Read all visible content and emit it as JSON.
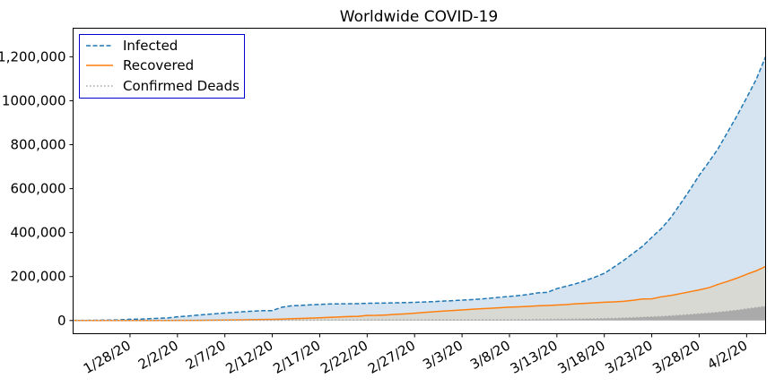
{
  "chart_data": {
    "type": "line",
    "title": "Worldwide COVID-19",
    "xlabel": "",
    "ylabel": "",
    "x": [
      "1/22/20",
      "1/23/20",
      "1/24/20",
      "1/25/20",
      "1/26/20",
      "1/27/20",
      "1/28/20",
      "1/29/20",
      "1/30/20",
      "1/31/20",
      "2/1/20",
      "2/2/20",
      "2/3/20",
      "2/4/20",
      "2/5/20",
      "2/6/20",
      "2/7/20",
      "2/8/20",
      "2/9/20",
      "2/10/20",
      "2/11/20",
      "2/12/20",
      "2/13/20",
      "2/14/20",
      "2/15/20",
      "2/16/20",
      "2/17/20",
      "2/18/20",
      "2/19/20",
      "2/20/20",
      "2/21/20",
      "2/22/20",
      "2/23/20",
      "2/24/20",
      "2/25/20",
      "2/26/20",
      "2/27/20",
      "2/28/20",
      "2/29/20",
      "3/1/20",
      "3/2/20",
      "3/3/20",
      "3/4/20",
      "3/5/20",
      "3/6/20",
      "3/7/20",
      "3/8/20",
      "3/9/20",
      "3/10/20",
      "3/11/20",
      "3/12/20",
      "3/13/20",
      "3/14/20",
      "3/15/20",
      "3/16/20",
      "3/17/20",
      "3/18/20",
      "3/19/20",
      "3/20/20",
      "3/21/20",
      "3/22/20",
      "3/23/20",
      "3/24/20",
      "3/25/20",
      "3/26/20",
      "3/27/20",
      "3/28/20",
      "3/29/20",
      "3/30/20",
      "3/31/20",
      "4/1/20",
      "4/2/20",
      "4/3/20",
      "4/4/20"
    ],
    "x_ticks": [
      "1/28/20",
      "2/2/20",
      "2/7/20",
      "2/12/20",
      "2/17/20",
      "2/22/20",
      "2/27/20",
      "3/3/20",
      "3/8/20",
      "3/13/20",
      "3/18/20",
      "3/23/20",
      "3/28/20",
      "4/2/20"
    ],
    "y_ticks": [
      0,
      200000,
      400000,
      600000,
      800000,
      1000000,
      1200000
    ],
    "y_tick_labels": [
      "0",
      "200,000",
      "400,000",
      "600,000",
      "800,000",
      "1000,000",
      "1,200,000"
    ],
    "ylim": [
      -60000,
      1330000
    ],
    "grid": false,
    "legend_position": "top-left",
    "series": [
      {
        "name": "Infected",
        "style": "dashed",
        "color": "#1f77b4",
        "fill": "#d5e4f0",
        "values": [
          555,
          654,
          941,
          1434,
          2118,
          2927,
          5578,
          6166,
          8234,
          9927,
          12038,
          16787,
          19881,
          23892,
          27635,
          30794,
          34391,
          37120,
          40150,
          42762,
          44802,
          45221,
          60368,
          66885,
          69030,
          71224,
          73258,
          75136,
          75639,
          76197,
          76819,
          78572,
          78958,
          79561,
          80406,
          81388,
          82746,
          84112,
          86011,
          88369,
          90306,
          92840,
          95120,
          97886,
          101801,
          105847,
          109821,
          113590,
          118620,
          125875,
          128352,
          145205,
          156101,
          167454,
          181574,
          197102,
          214821,
          242570,
          272208,
          304507,
          336953,
          378235,
          418045,
          467653,
          529591,
          593291,
          660706,
          720117,
          782365,
          857487,
          932605,
          1013157,
          1095917,
          1200000
        ]
      },
      {
        "name": "Recovered",
        "style": "solid",
        "color": "#ff7f0e",
        "fill": "#d9d9d3",
        "values": [
          28,
          30,
          36,
          39,
          52,
          61,
          107,
          126,
          143,
          222,
          284,
          472,
          623,
          852,
          1124,
          1487,
          2011,
          2616,
          3244,
          3946,
          4683,
          5150,
          6295,
          8058,
          9395,
          10865,
          12583,
          14352,
          16121,
          18177,
          18890,
          22886,
          23394,
          25227,
          27905,
          30384,
          33277,
          36711,
          39782,
          42716,
          45602,
          48228,
          51170,
          53796,
          55865,
          58358,
          60694,
          62494,
          64404,
          67003,
          68324,
          70251,
          72624,
          76034,
          78088,
          80840,
          83207,
          84854,
          87256,
          91692,
          97899,
          98351,
          107891,
          113604,
          122132,
          130801,
          139426,
          149126,
          164609,
          178100,
          193177,
          210186,
          225796,
          246152
        ]
      },
      {
        "name": "Confirmed Deads",
        "style": "dotted",
        "color": "#a9a9a9",
        "fill": "#aaaaaa",
        "values": [
          17,
          18,
          26,
          42,
          56,
          82,
          131,
          133,
          171,
          213,
          259,
          362,
          426,
          492,
          564,
          634,
          719,
          806,
          906,
          1013,
          1113,
          1118,
          1371,
          1523,
          1666,
          1770,
          1868,
          2007,
          2122,
          2247,
          2251,
          2458,
          2469,
          2629,
          2708,
          2770,
          2814,
          2872,
          2941,
          2996,
          3085,
          3160,
          3254,
          3348,
          3460,
          3558,
          3803,
          3996,
          4262,
          4615,
          4720,
          5404,
          5819,
          6440,
          7126,
          7905,
          8733,
          9867,
          11299,
          12973,
          14651,
          16505,
          18625,
          21181,
          23970,
          27198,
          30652,
          33925,
          37582,
          42107,
          47180,
          52983,
          58787,
          64606
        ]
      }
    ]
  }
}
